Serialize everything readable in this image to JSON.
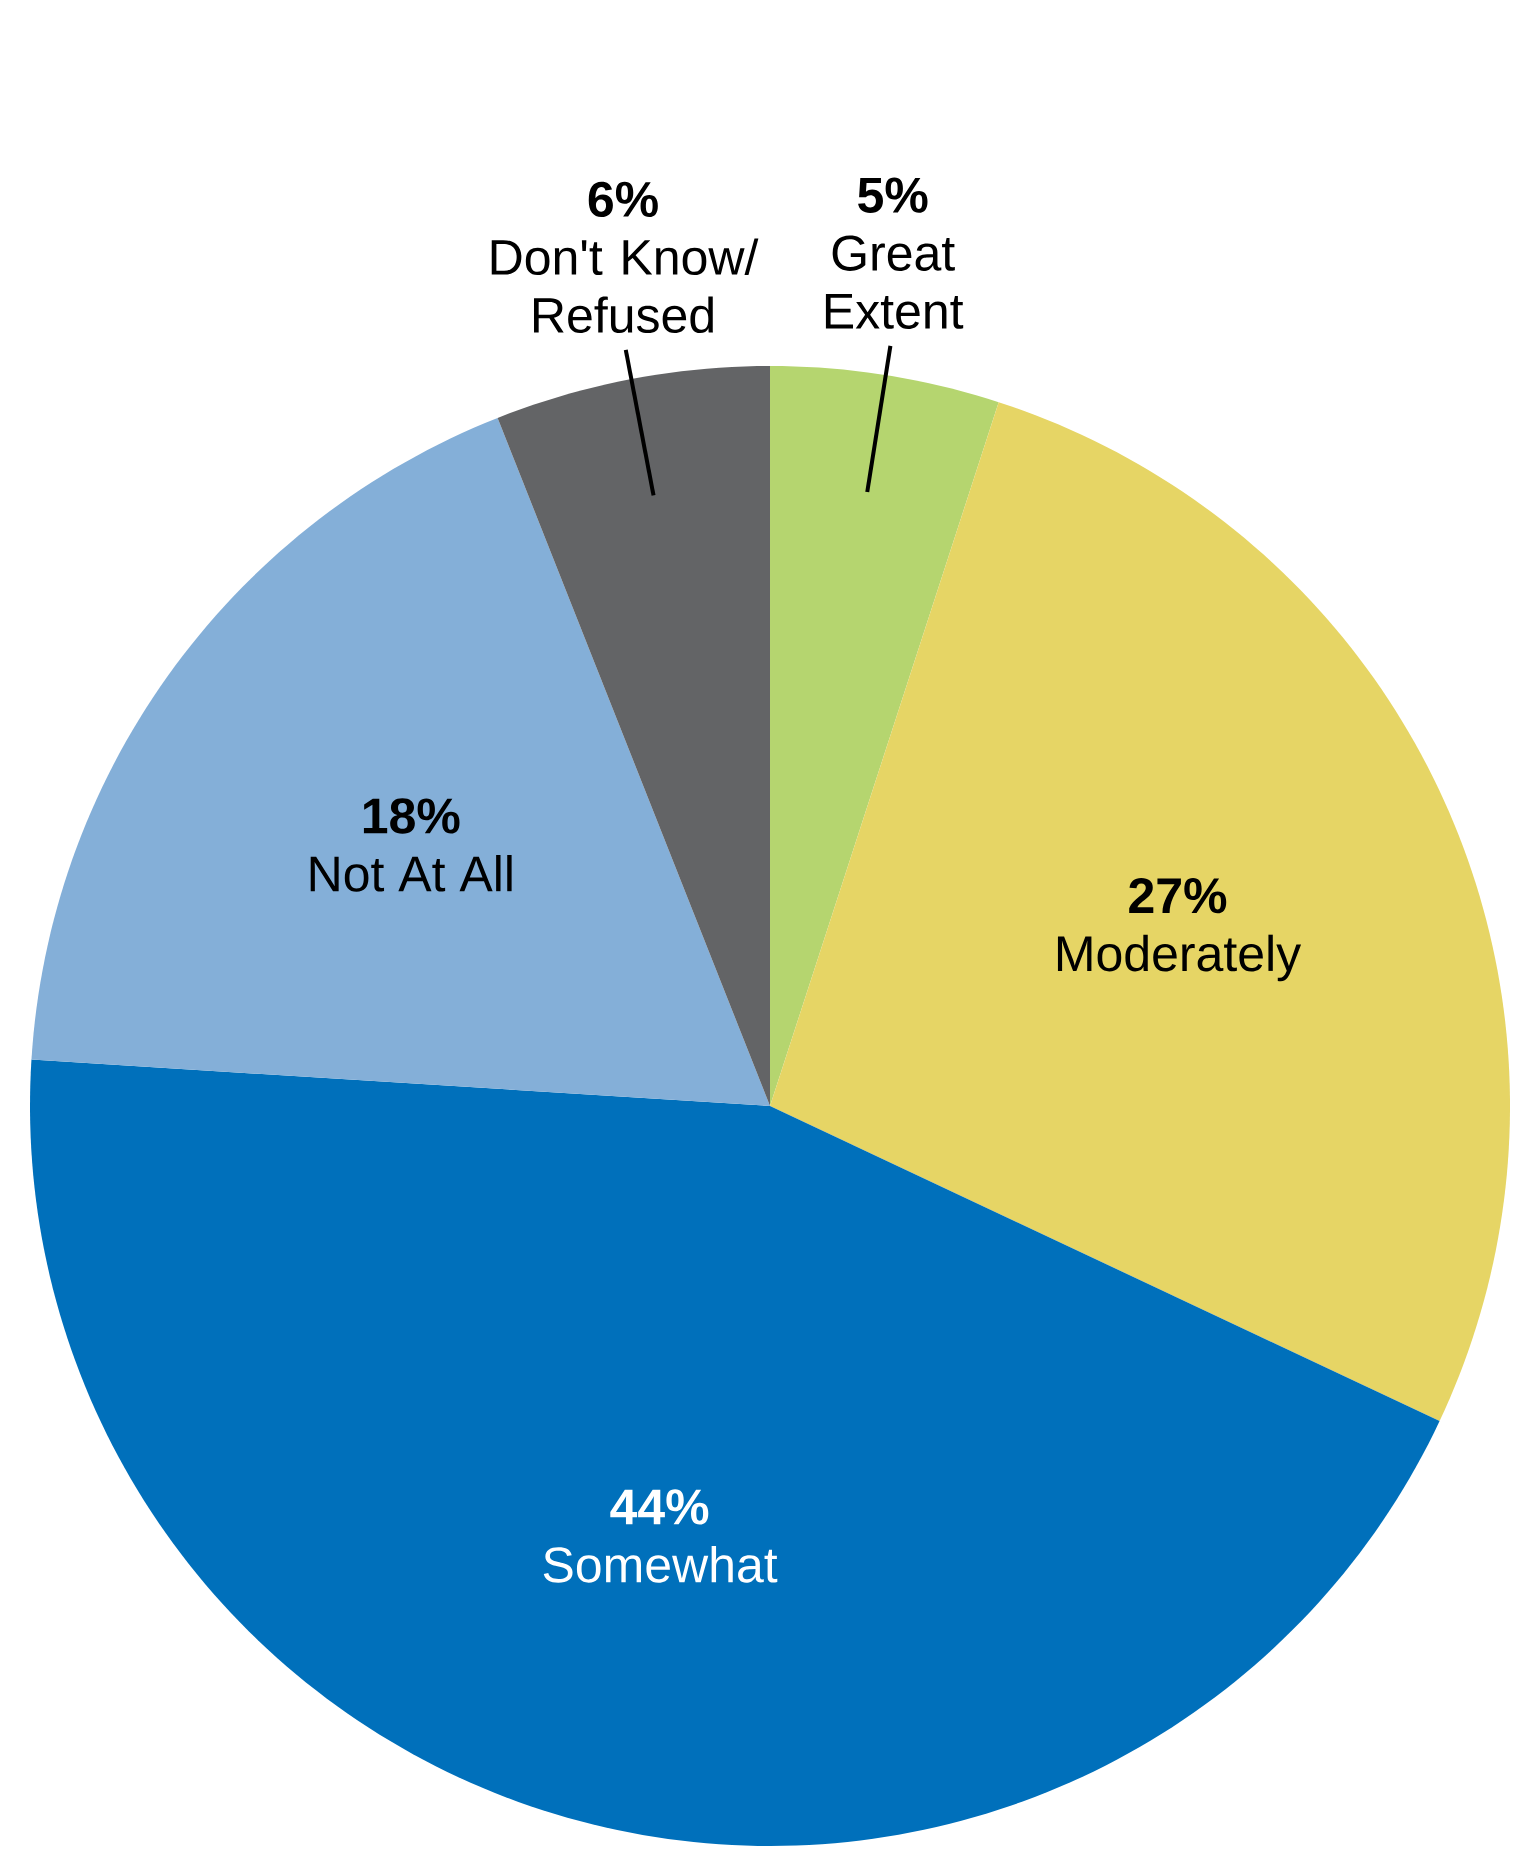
{
  "chart_data": {
    "type": "pie",
    "categories": [
      "Great Extent",
      "Moderately",
      "Somewhat",
      "Not At All",
      "Don't Know/ Refused"
    ],
    "values": [
      5,
      27,
      44,
      18,
      6
    ],
    "value_labels": [
      "5%",
      "27%",
      "44%",
      "18%",
      "6%"
    ],
    "colors": [
      "#b5d56f",
      "#e6d565",
      "#0070bb",
      "#84afd8",
      "#636466"
    ]
  }
}
